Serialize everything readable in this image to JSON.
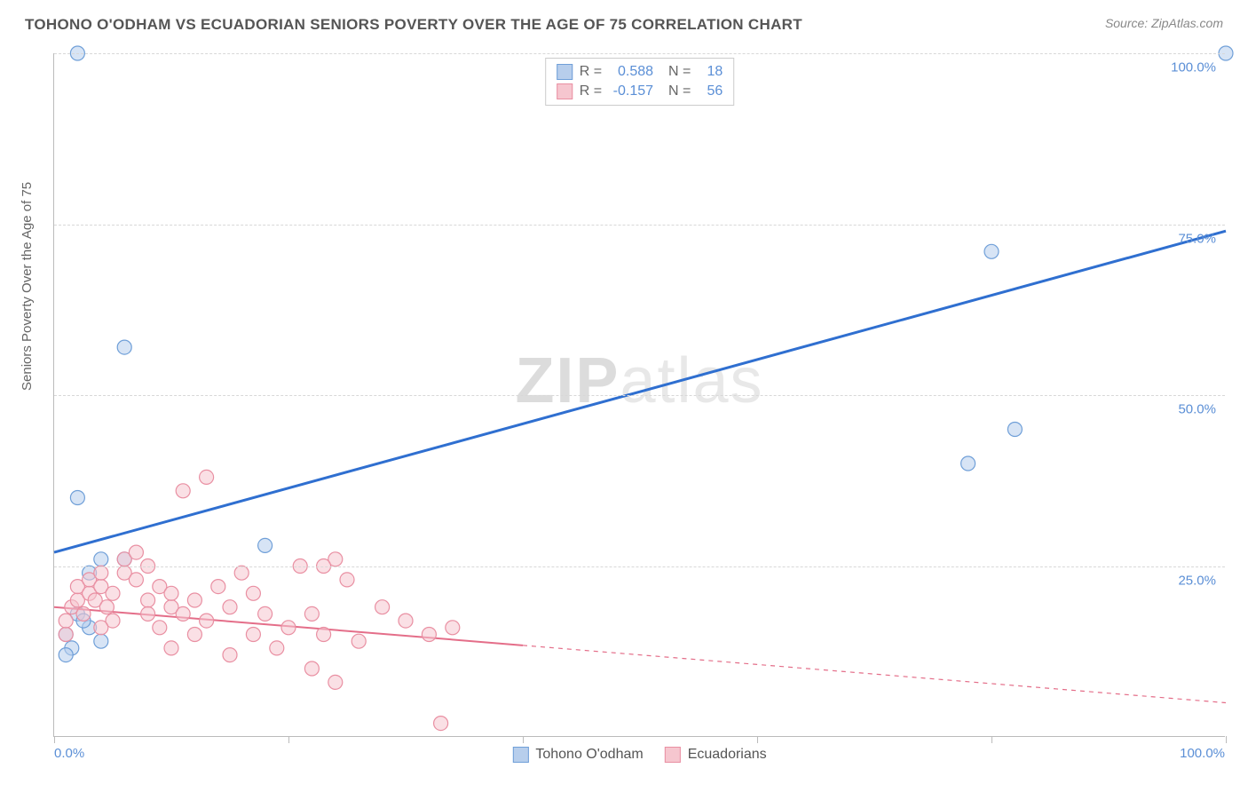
{
  "title": "TOHONO O'ODHAM VS ECUADORIAN SENIORS POVERTY OVER THE AGE OF 75 CORRELATION CHART",
  "source": "Source: ZipAtlas.com",
  "ylabel": "Seniors Poverty Over the Age of 75",
  "watermark_a": "ZIP",
  "watermark_b": "atlas",
  "chart": {
    "type": "scatter",
    "xlim": [
      0,
      100
    ],
    "ylim": [
      0,
      100
    ],
    "y_gridlines": [
      25,
      50,
      75,
      100
    ],
    "y_tick_labels": [
      "25.0%",
      "50.0%",
      "75.0%",
      "100.0%"
    ],
    "x_ticks": [
      0,
      20,
      40,
      60,
      80,
      100
    ],
    "x_tick_labels_shown": {
      "0": "0.0%",
      "100": "100.0%"
    },
    "background_color": "#ffffff",
    "grid_color": "#d8d8d8",
    "axis_color": "#bbbbbb",
    "marker_radius": 8,
    "marker_opacity": 0.55,
    "series": [
      {
        "name": "Tohono O'odham",
        "color_fill": "#b7ceec",
        "color_stroke": "#6f9fd8",
        "trend_color": "#2f6fd0",
        "trend_style": "solid",
        "trend_width": 3,
        "R": "0.588",
        "N": "18",
        "trend": {
          "x1": 0,
          "y1": 27,
          "x2": 100,
          "y2": 74
        },
        "points": [
          [
            2,
            100
          ],
          [
            100,
            100
          ],
          [
            80,
            71
          ],
          [
            82,
            45
          ],
          [
            78,
            40
          ],
          [
            6,
            57
          ],
          [
            2,
            35
          ],
          [
            18,
            28
          ],
          [
            4,
            26
          ],
          [
            3,
            24
          ],
          [
            6,
            26
          ],
          [
            2,
            18
          ],
          [
            3,
            16
          ],
          [
            1,
            15
          ],
          [
            4,
            14
          ],
          [
            1.5,
            13
          ],
          [
            1,
            12
          ],
          [
            2.5,
            17
          ]
        ]
      },
      {
        "name": "Ecuadorians",
        "color_fill": "#f6c6cf",
        "color_stroke": "#e98fa2",
        "trend_color": "#e46e89",
        "trend_style_solid_until_x": 40,
        "trend_width": 2,
        "R": "-0.157",
        "N": "56",
        "trend": {
          "x1": 0,
          "y1": 19,
          "x2": 100,
          "y2": 5
        },
        "points": [
          [
            1,
            15
          ],
          [
            1,
            17
          ],
          [
            1.5,
            19
          ],
          [
            2,
            20
          ],
          [
            2,
            22
          ],
          [
            2.5,
            18
          ],
          [
            3,
            21
          ],
          [
            3,
            23
          ],
          [
            3.5,
            20
          ],
          [
            4,
            22
          ],
          [
            4,
            24
          ],
          [
            4.5,
            19
          ],
          [
            5,
            21
          ],
          [
            5,
            17
          ],
          [
            6,
            24
          ],
          [
            6,
            26
          ],
          [
            7,
            23
          ],
          [
            7,
            27
          ],
          [
            8,
            20
          ],
          [
            8,
            18
          ],
          [
            8,
            25
          ],
          [
            9,
            22
          ],
          [
            9,
            16
          ],
          [
            10,
            19
          ],
          [
            10,
            13
          ],
          [
            10,
            21
          ],
          [
            11,
            18
          ],
          [
            11,
            36
          ],
          [
            12,
            15
          ],
          [
            12,
            20
          ],
          [
            13,
            38
          ],
          [
            13,
            17
          ],
          [
            14,
            22
          ],
          [
            15,
            19
          ],
          [
            15,
            12
          ],
          [
            16,
            24
          ],
          [
            17,
            15
          ],
          [
            17,
            21
          ],
          [
            18,
            18
          ],
          [
            19,
            13
          ],
          [
            20,
            16
          ],
          [
            21,
            25
          ],
          [
            22,
            18
          ],
          [
            22,
            10
          ],
          [
            23,
            15
          ],
          [
            24,
            26
          ],
          [
            24,
            8
          ],
          [
            25,
            23
          ],
          [
            26,
            14
          ],
          [
            28,
            19
          ],
          [
            30,
            17
          ],
          [
            32,
            15
          ],
          [
            33,
            2
          ],
          [
            34,
            16
          ],
          [
            23,
            25
          ],
          [
            4,
            16
          ]
        ]
      }
    ]
  },
  "legend_items": [
    {
      "label": "Tohono O'odham",
      "fill": "#b7ceec",
      "stroke": "#6f9fd8"
    },
    {
      "label": "Ecuadorians",
      "fill": "#f6c6cf",
      "stroke": "#e98fa2"
    }
  ]
}
